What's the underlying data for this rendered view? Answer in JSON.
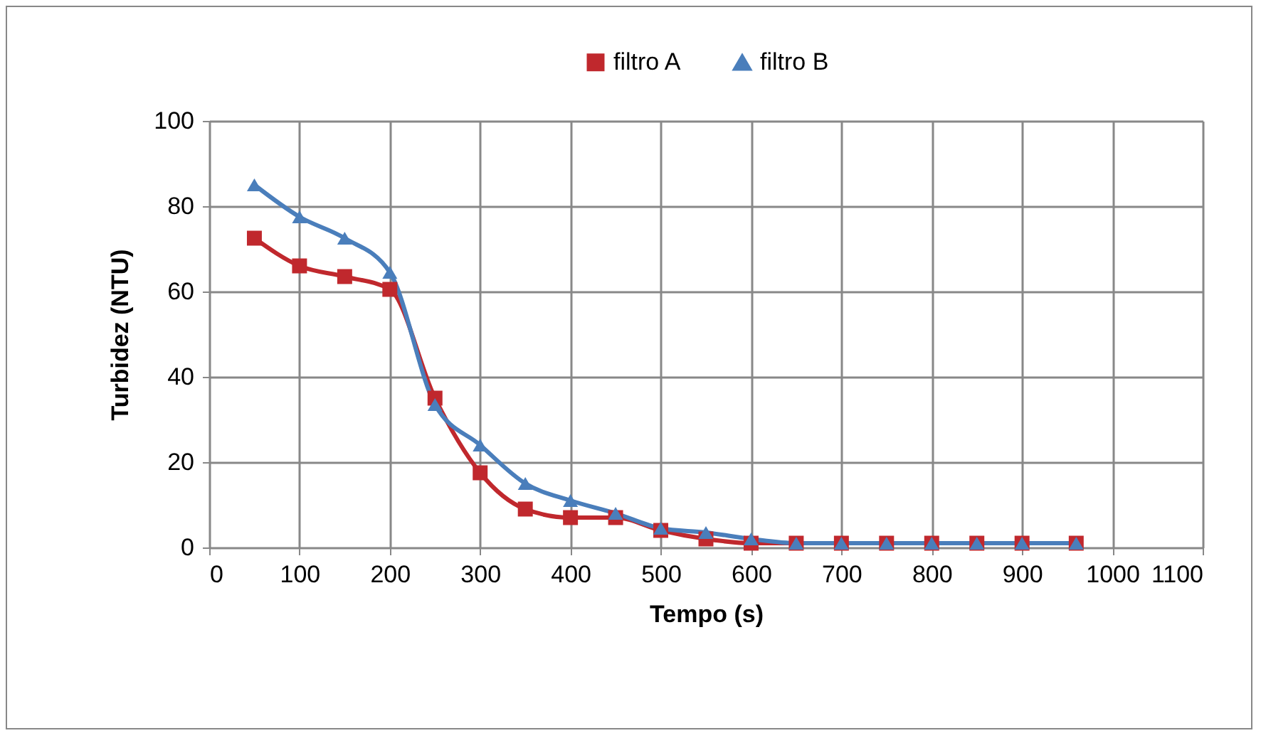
{
  "chart_data": {
    "type": "line",
    "xlabel": "Tempo (s)",
    "ylabel": "Turbidez (NTU)",
    "x": [
      50,
      100,
      150,
      200,
      250,
      300,
      350,
      400,
      450,
      500,
      550,
      600,
      650,
      700,
      750,
      800,
      850,
      900,
      960
    ],
    "series": [
      {
        "name": "filtro A",
        "color": "#c0282d",
        "marker": "square",
        "values": [
          72.5,
          66,
          63.5,
          60.5,
          35,
          17.5,
          9,
          7,
          7,
          4,
          2,
          1,
          1,
          1,
          1,
          1,
          1,
          1,
          1
        ]
      },
      {
        "name": "filtro B",
        "color": "#4a7ebb",
        "marker": "triangle",
        "values": [
          85,
          77.5,
          72.5,
          64.5,
          33.5,
          24,
          15,
          11,
          8,
          4.5,
          3.5,
          2,
          1,
          1,
          1,
          1,
          1,
          1,
          1
        ]
      }
    ],
    "xlim": [
      0,
      1100
    ],
    "xticks": [
      0,
      100,
      200,
      300,
      400,
      500,
      600,
      700,
      800,
      900,
      1000,
      1100
    ],
    "ylim": [
      0,
      100
    ],
    "yticks": [
      0,
      20,
      40,
      60,
      80,
      100
    ],
    "grid": true,
    "legend": "top",
    "line_style": "solid"
  }
}
